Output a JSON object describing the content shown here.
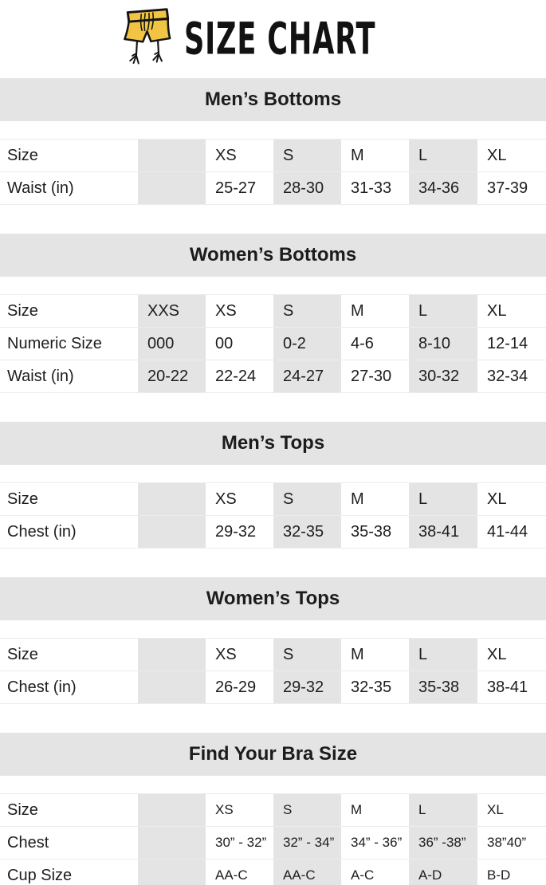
{
  "header": {
    "title": "SIZE CHART",
    "logo_icon": "shorts-with-bird-legs-icon"
  },
  "colors": {
    "accent_yellow": "#f2c444",
    "band_gray": "#e4e4e4",
    "row_border": "#ececec",
    "text": "#1d1d1d"
  },
  "sections": [
    {
      "title": "Men’s Bottoms",
      "small_values": false,
      "rows": [
        {
          "label": "Size",
          "values": [
            "",
            "XS",
            "S",
            "M",
            "L",
            "XL"
          ]
        },
        {
          "label": "Waist (in)",
          "values": [
            "",
            "25-27",
            "28-30",
            "31-33",
            "34-36",
            "37-39"
          ]
        }
      ]
    },
    {
      "title": "Women’s Bottoms",
      "small_values": false,
      "rows": [
        {
          "label": "Size",
          "values": [
            "XXS",
            "XS",
            "S",
            "M",
            "L",
            "XL"
          ]
        },
        {
          "label": "Numeric Size",
          "values": [
            "000",
            "00",
            "0-2",
            "4-6",
            "8-10",
            "12-14"
          ]
        },
        {
          "label": "Waist (in)",
          "values": [
            "20-22",
            "22-24",
            "24-27",
            "27-30",
            "30-32",
            "32-34"
          ]
        }
      ]
    },
    {
      "title": "Men’s Tops",
      "small_values": false,
      "rows": [
        {
          "label": "Size",
          "values": [
            "",
            "XS",
            "S",
            "M",
            "L",
            "XL"
          ]
        },
        {
          "label": "Chest (in)",
          "values": [
            "",
            "29-32",
            "32-35",
            "35-38",
            "38-41",
            "41-44"
          ]
        }
      ]
    },
    {
      "title": "Women’s Tops",
      "small_values": false,
      "rows": [
        {
          "label": "Size",
          "values": [
            "",
            "XS",
            "S",
            "M",
            "L",
            "XL"
          ]
        },
        {
          "label": "Chest (in)",
          "values": [
            "",
            "26-29",
            "29-32",
            "32-35",
            "35-38",
            "38-41"
          ]
        }
      ]
    },
    {
      "title": "Find Your Bra Size",
      "small_values": true,
      "rows": [
        {
          "label": "Size",
          "values": [
            "",
            "XS",
            "S",
            "M",
            "L",
            "XL"
          ]
        },
        {
          "label": "Chest",
          "values": [
            "",
            "30” - 32”",
            "32” - 34”",
            "34” - 36”",
            "36” -38”",
            "38”40”"
          ]
        },
        {
          "label": "Cup Size",
          "values": [
            "",
            "AA-C",
            "AA-C",
            "A-C",
            "A-D",
            "B-D"
          ]
        }
      ]
    }
  ]
}
